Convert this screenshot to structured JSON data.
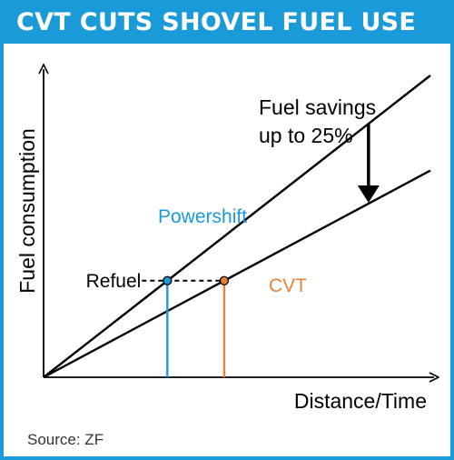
{
  "header": {
    "title": "CVT CUTS SHOVEL FUEL USE"
  },
  "footer": {
    "source": "Source: ZF"
  },
  "colors": {
    "banner": "#1a9ad9",
    "powershift": "#1a9ad9",
    "cvt": "#e8823a",
    "lines": "#000000"
  },
  "chart_data": {
    "type": "line",
    "title": "CVT CUTS SHOVEL FUEL USE",
    "xlabel": "Distance/Time",
    "ylabel": "Fuel consumption",
    "series": [
      {
        "name": "Powershift",
        "x": [
          0,
          1
        ],
        "y": [
          0,
          1
        ],
        "color": "#1a9ad9"
      },
      {
        "name": "CVT",
        "x": [
          0,
          1
        ],
        "y": [
          0,
          0.685
        ],
        "color": "#e8823a"
      }
    ],
    "annotations": {
      "refuel_label": "Refuel",
      "refuel_level": 0.32,
      "powershift_refuel_x": 0.32,
      "cvt_refuel_x": 0.467,
      "savings_text_line1": "Fuel savings",
      "savings_text_line2": "up to 25%",
      "savings_arrow_x": 0.84
    },
    "xlim": [
      0,
      1
    ],
    "ylim": [
      0,
      1
    ],
    "axis_ticks": false,
    "grid": false
  }
}
